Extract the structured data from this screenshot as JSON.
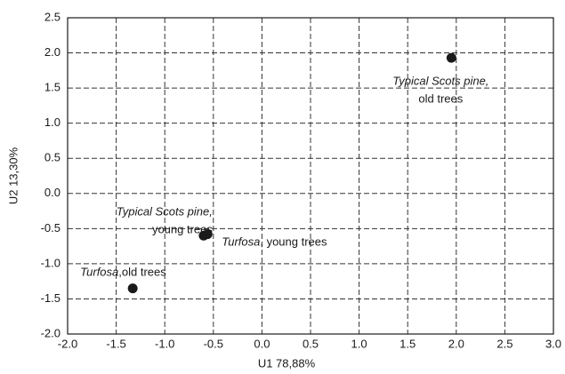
{
  "chart_data": {
    "type": "scatter",
    "x_label": "U1 78,88%",
    "y_label": "U2 13,30%",
    "x": [
      1.95,
      -0.6,
      -0.56,
      -1.33
    ],
    "values": [
      1.93,
      -0.6,
      -0.58,
      -1.35
    ],
    "labels": [
      {
        "italic": "Typical Scots pine,",
        "text": "old trees"
      },
      {
        "italic": "Typical Scots pine,",
        "text": "young trees"
      },
      {
        "italic": "Turfosa",
        "text": ", young trees"
      },
      {
        "italic": "Turfosa",
        "text": ",old trees"
      }
    ],
    "color": "#1a1a1a",
    "xlim": [
      -2.0,
      3.0
    ],
    "xticks": [
      {
        "value": -2,
        "label": "-2.0"
      },
      -1.5,
      {
        "value": -1,
        "label": "-1.0"
      },
      -0.5,
      {
        "value": 0,
        "label": "0.0"
      },
      0.5,
      {
        "value": 1,
        "label": "1.0"
      },
      1.5,
      {
        "value": 2,
        "label": "2.0"
      },
      2.5,
      {
        "value": 3,
        "label": "3.0"
      }
    ],
    "ylim": [
      -2.0,
      2.5
    ],
    "yticks": [
      {
        "value": -2,
        "label": "-2.0"
      },
      -1.5,
      {
        "value": -1,
        "label": "-1.0"
      },
      -0.5,
      {
        "value": 0,
        "label": "0.0"
      },
      0.5,
      {
        "value": 1,
        "label": "1.0"
      },
      1.5,
      {
        "value": 2,
        "label": "2.0"
      },
      2.5
    ],
    "grid": true
  }
}
